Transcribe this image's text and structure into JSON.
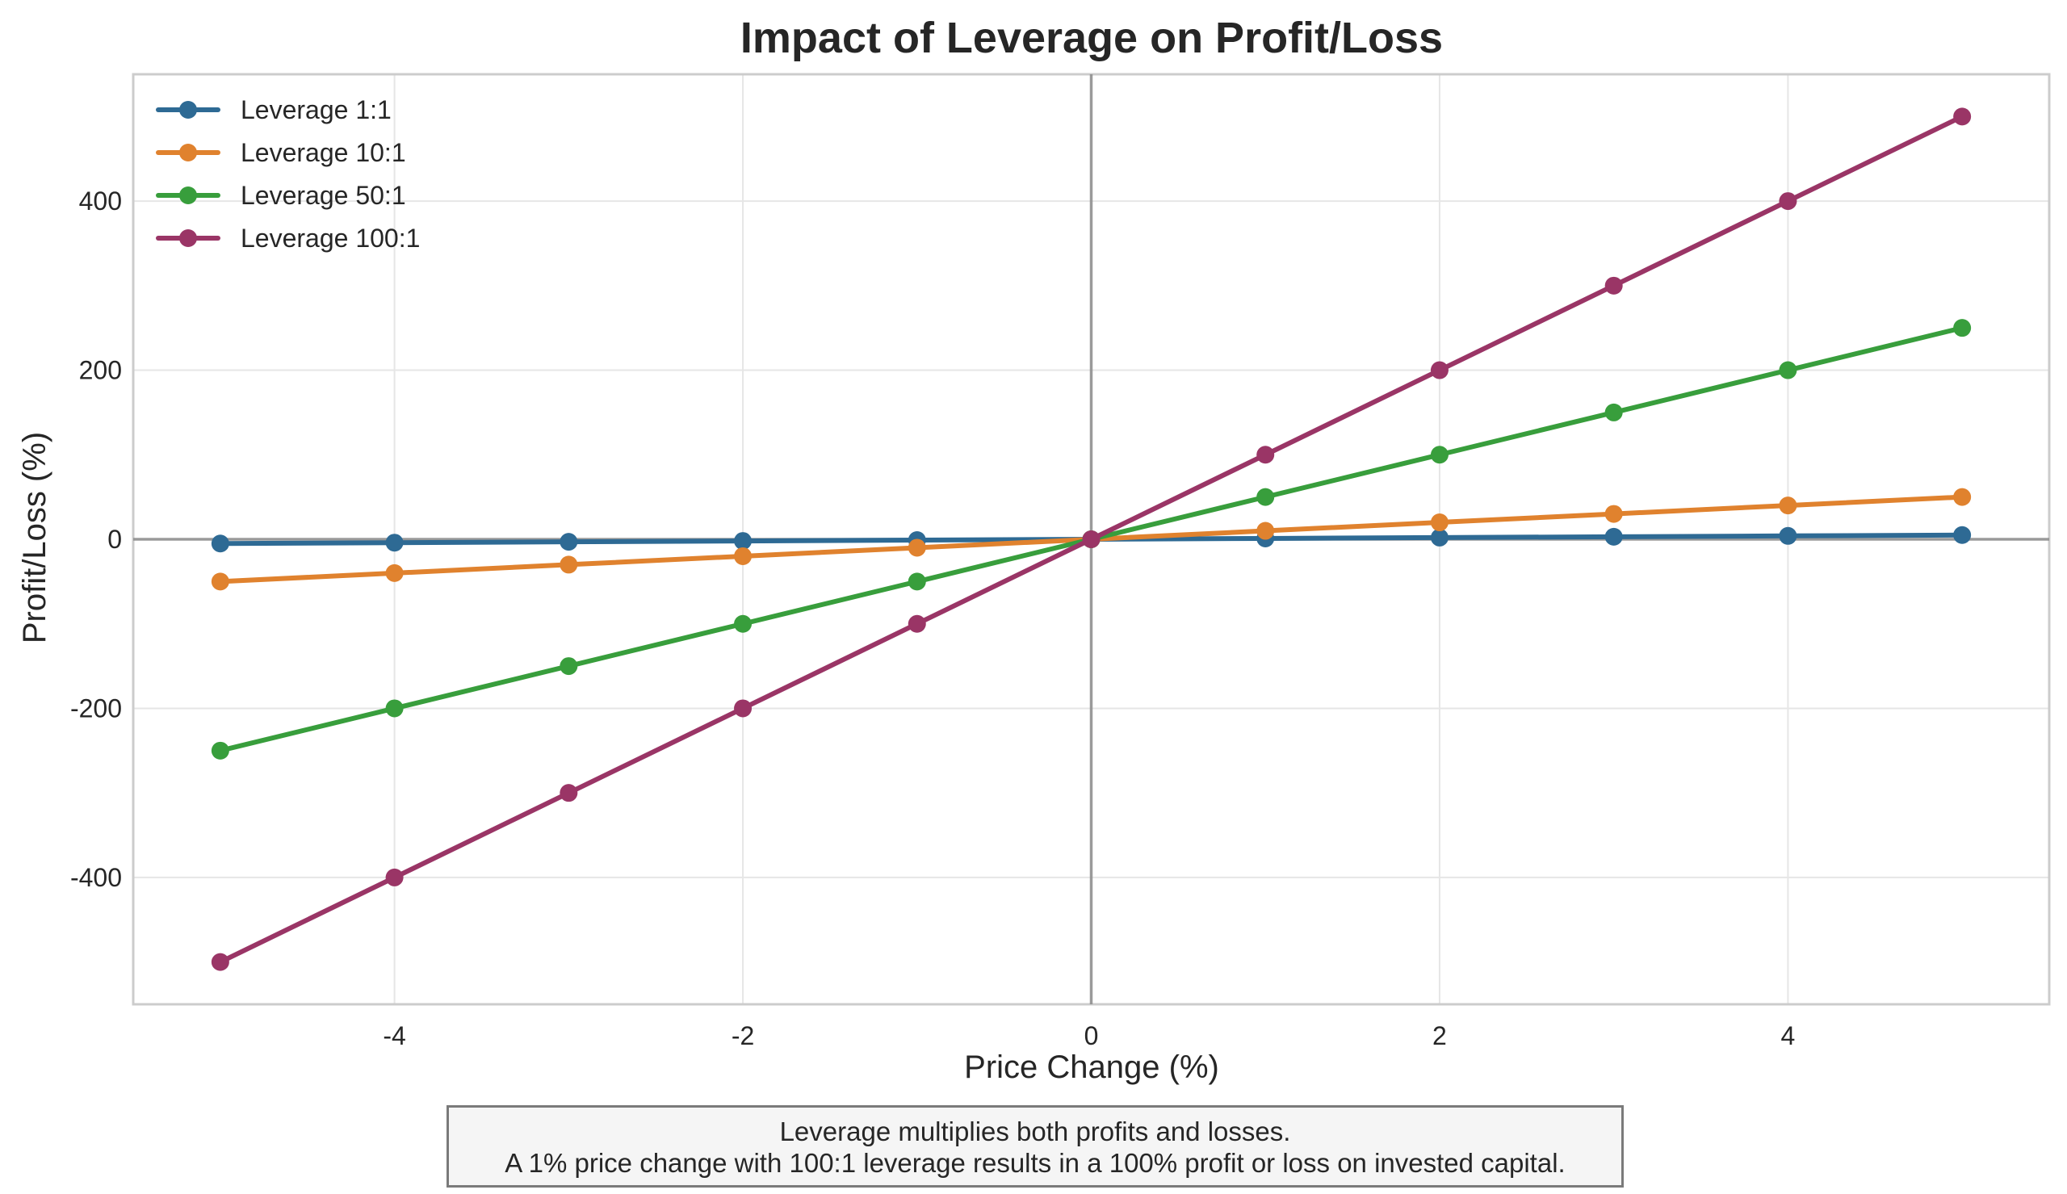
{
  "chart_data": {
    "type": "line",
    "title": "Impact of Leverage on Profit/Loss",
    "xlabel": "Price Change (%)",
    "ylabel": "Profit/Loss (%)",
    "x": [
      -5,
      -4,
      -3,
      -2,
      -1,
      0,
      1,
      2,
      3,
      4,
      5
    ],
    "xlim": [
      -5.5,
      5.5
    ],
    "ylim": [
      -550,
      550
    ],
    "xticks": [
      -4,
      -2,
      0,
      2,
      4
    ],
    "yticks": [
      -400,
      -200,
      0,
      200,
      400
    ],
    "xtick_labels": [
      "-4",
      "-2",
      "0",
      "2",
      "4"
    ],
    "ytick_labels": [
      "-400",
      "-200",
      "0",
      "200",
      "400"
    ],
    "grid": true,
    "legend_position": "top-left",
    "series": [
      {
        "name": "Leverage 1:1",
        "color": "#2e6a94",
        "values": [
          -5,
          -4,
          -3,
          -2,
          -1,
          0,
          1,
          2,
          3,
          4,
          5
        ]
      },
      {
        "name": "Leverage 10:1",
        "color": "#e0822e",
        "values": [
          -50,
          -40,
          -30,
          -20,
          -10,
          0,
          10,
          20,
          30,
          40,
          50
        ]
      },
      {
        "name": "Leverage 50:1",
        "color": "#389e3c",
        "values": [
          -250,
          -200,
          -150,
          -100,
          -50,
          0,
          50,
          100,
          150,
          200,
          250
        ]
      },
      {
        "name": "Leverage 100:1",
        "color": "#9a3566",
        "values": [
          -500,
          -400,
          -300,
          -200,
          -100,
          0,
          100,
          200,
          300,
          400,
          500
        ]
      }
    ],
    "annotation": {
      "line1": "Leverage multiplies both profits and losses.",
      "line2": "A 1% price change with 100:1 leverage results in a 100% profit or loss on invested capital."
    }
  }
}
